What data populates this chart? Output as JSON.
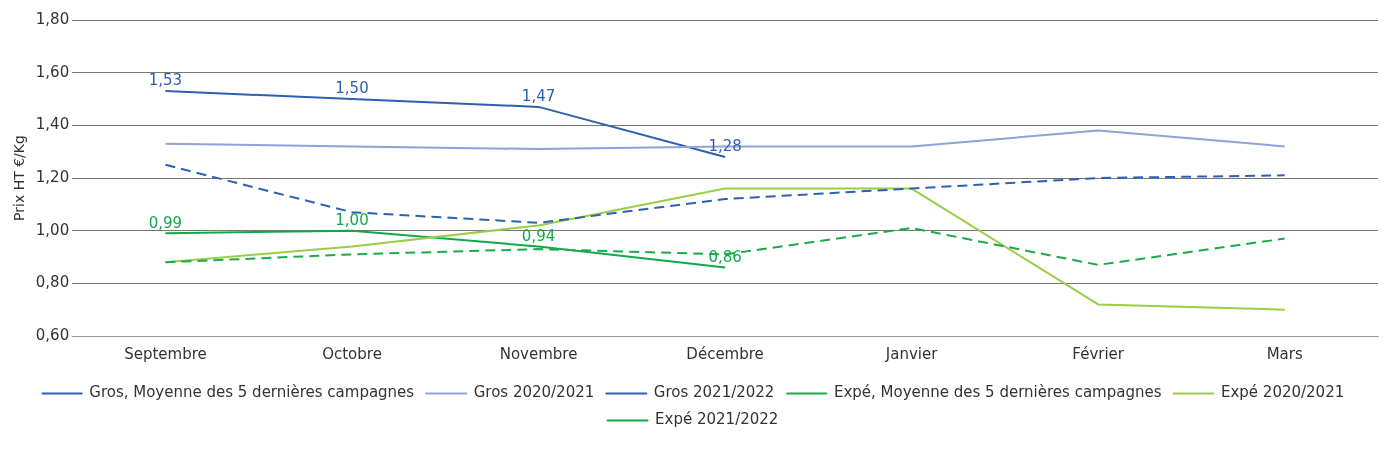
{
  "chart_data": {
    "type": "line",
    "ylabel": "Prix HT €/Kg",
    "categories": [
      "Septembre",
      "Octobre",
      "Novembre",
      "Décembre",
      "Janvier",
      "Février",
      "Mars"
    ],
    "ylim": [
      0.6,
      1.8
    ],
    "yticks": [
      {
        "value": 0.6,
        "label": "0,60"
      },
      {
        "value": 0.8,
        "label": "0,80"
      },
      {
        "value": 1.0,
        "label": "1,00"
      },
      {
        "value": 1.2,
        "label": "1,20"
      },
      {
        "value": 1.4,
        "label": "1,40"
      },
      {
        "value": 1.6,
        "label": "1,60"
      },
      {
        "value": 1.8,
        "label": "1,80"
      }
    ],
    "grid": "y",
    "legend": "bottom",
    "marker": "none",
    "series": [
      {
        "name": "Gros, Moyenne des 5 dernières campagnes",
        "color": "#2f5fb3",
        "line_style": "dashed",
        "values": [
          1.25,
          1.07,
          1.03,
          1.12,
          1.16,
          1.2,
          1.21
        ]
      },
      {
        "name": "Gros 2020/2021",
        "color": "#8fa3d9",
        "values": [
          1.33,
          1.32,
          1.31,
          1.32,
          1.32,
          1.38,
          1.32
        ]
      },
      {
        "name": "Gros 2021/2022",
        "color": "#2e5fb0",
        "values": [
          1.53,
          1.5,
          1.47,
          1.28,
          null,
          null,
          null
        ],
        "value_labels": [
          "1,53",
          "1,50",
          "1,47",
          "1,28",
          null,
          null,
          null
        ]
      },
      {
        "name": "Expé, Moyenne des 5 dernières campagnes",
        "color": "#1aab4a",
        "line_style": "dashed",
        "values": [
          0.88,
          0.91,
          0.93,
          0.91,
          1.01,
          0.87,
          0.97
        ]
      },
      {
        "name": "Expé 2020/2021",
        "color": "#9acd4a",
        "values": [
          0.88,
          0.94,
          1.02,
          1.16,
          1.16,
          0.72,
          0.7
        ]
      },
      {
        "name": "Expé 2021/2022",
        "color": "#12a84a",
        "values": [
          0.99,
          1.0,
          0.94,
          0.86,
          null,
          null,
          null
        ],
        "value_labels": [
          "0,99",
          "1,00",
          "0,94",
          "0,86",
          null,
          null,
          null
        ]
      }
    ]
  }
}
